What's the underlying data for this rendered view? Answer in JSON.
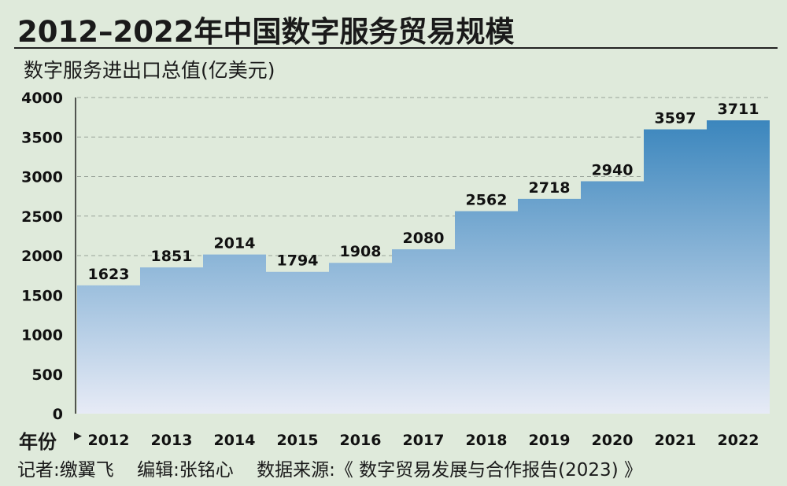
{
  "header": {
    "title": "2012–2022年中国数字服务贸易规模",
    "unit_label": "数字服务进出口总值(亿美元)"
  },
  "footer": {
    "reporter": "记者:缴翼飞",
    "editor": "编辑:张铭心",
    "source": "数据来源:《 数字贸易发展与合作报告(2023) 》"
  },
  "colors": {
    "fill_top": "#3b86bd",
    "fill_bottom": "#e7ebf6",
    "background": "#dfeadb"
  },
  "chart_data": {
    "type": "area",
    "step": true,
    "title": "2012–2022年中国数字服务贸易规模",
    "ylabel": "数字服务进出口总值(亿美元)",
    "xlabel": "年份",
    "categories": [
      "2012",
      "2013",
      "2014",
      "2015",
      "2016",
      "2017",
      "2018",
      "2019",
      "2020",
      "2021",
      "2022"
    ],
    "values": [
      1623,
      1851,
      2014,
      1794,
      1908,
      2080,
      2562,
      2718,
      2940,
      3597,
      3711
    ],
    "ylim": [
      0,
      4000
    ],
    "yticks": [
      0,
      500,
      1000,
      1500,
      2000,
      2500,
      3000,
      3500,
      4000
    ],
    "grid": "dashed horizontal",
    "data_labels": true
  }
}
